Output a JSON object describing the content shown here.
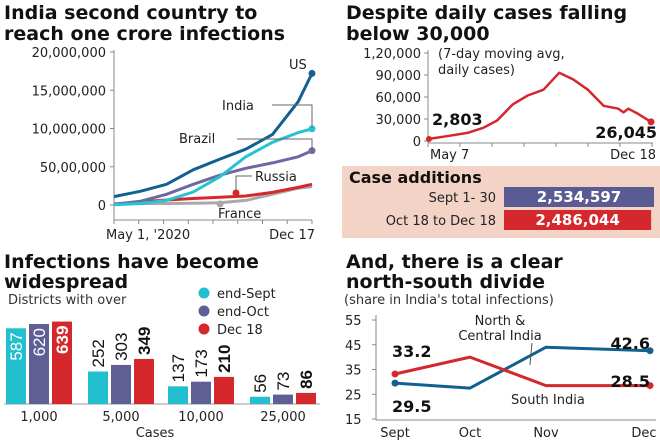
{
  "chart_data": [
    {
      "type": "line",
      "title": "India second country to reach one crore infections",
      "xtick_labels": [
        "May 1, '2020",
        "Dec 17"
      ],
      "ytick_labels": [
        "20,000,000",
        "15,000,000",
        "10,000,000",
        "50,00,000",
        "0"
      ],
      "yticks": [
        20000000,
        15000000,
        10000000,
        5000000,
        0
      ],
      "ylim": [
        0,
        20000000
      ],
      "x": [
        "2020-05-01",
        "2020-06-01",
        "2020-07-01",
        "2020-08-01",
        "2020-09-01",
        "2020-10-01",
        "2020-11-01",
        "2020-12-01",
        "2020-12-17"
      ],
      "series": [
        {
          "name": "US",
          "color": "#12608f",
          "values": [
            1100000,
            1800000,
            2700000,
            4600000,
            6000000,
            7300000,
            9200000,
            13500000,
            17200000
          ]
        },
        {
          "name": "India",
          "color": "#27c3d3",
          "values": [
            35000,
            190000,
            600000,
            1700000,
            3700000,
            6300000,
            8200000,
            9460000,
            9960000
          ]
        },
        {
          "name": "Brazil",
          "color": "#6b6aa0",
          "values": [
            90000,
            500000,
            1400000,
            2700000,
            3900000,
            4800000,
            5500000,
            6300000,
            7100000
          ]
        },
        {
          "name": "Russia",
          "color": "#d4282c",
          "values": [
            110000,
            410000,
            650000,
            850000,
            1000000,
            1180000,
            1650000,
            2300000,
            2700000
          ]
        },
        {
          "name": "France",
          "color": "#a9a9a9",
          "values": [
            170000,
            190000,
            200000,
            220000,
            290000,
            600000,
            1400000,
            2200000,
            2400000
          ]
        }
      ]
    },
    {
      "type": "line",
      "title": "Despite daily cases falling below 30,000",
      "subtitle": "(7-day moving avg, daily cases)",
      "subtitle_lines": [
        "(7-day moving avg,",
        "daily cases)"
      ],
      "ytick_labels": [
        "1,20,000",
        "90,000",
        "60,000",
        "30,000",
        "0"
      ],
      "yticks": [
        120000,
        90000,
        60000,
        30000,
        0
      ],
      "ylim": [
        0,
        120000
      ],
      "xtick_labels": [
        "May 7",
        "Dec 18"
      ],
      "x": [
        "2020-05-07",
        "2020-05-25",
        "2020-06-15",
        "2020-07-01",
        "2020-07-15",
        "2020-07-31",
        "2020-08-15",
        "2020-08-31",
        "2020-09-16",
        "2020-09-30",
        "2020-10-15",
        "2020-10-31",
        "2020-11-15",
        "2020-11-20",
        "2020-11-25",
        "2020-12-05",
        "2020-12-18"
      ],
      "values": [
        2803,
        6500,
        11000,
        18000,
        28000,
        50000,
        62000,
        70000,
        93000,
        84000,
        70000,
        48000,
        44000,
        39000,
        44000,
        37000,
        26045
      ],
      "color": "#d4282c",
      "annotations": {
        "start": "2,803",
        "end": "26,045"
      }
    },
    {
      "type": "bar",
      "title": "Case additions",
      "categories": [
        "Sept 1- 30",
        "Oct 18 to Dec 18"
      ],
      "values": [
        2534597,
        2486044
      ],
      "value_labels": [
        "2,534,597",
        "2,486,044"
      ],
      "colors": [
        "#5a5b92",
        "#d4282c"
      ],
      "background": "#f3d3c6"
    },
    {
      "type": "bar",
      "title": "Infections have become widespread",
      "subtitle": "Districts with over",
      "xlabel": "Cases",
      "categories": [
        "1,000",
        "5,000",
        "10,000",
        "25,000"
      ],
      "series": [
        {
          "name": "end-Sept",
          "color": "#22c0cf",
          "values": [
            587,
            252,
            137,
            56
          ]
        },
        {
          "name": "end-Oct",
          "color": "#5f5f95",
          "values": [
            620,
            303,
            173,
            73
          ]
        },
        {
          "name": "Dec 18",
          "color": "#d4282c",
          "values": [
            639,
            349,
            210,
            86
          ]
        }
      ],
      "legend": "top-right"
    },
    {
      "type": "line",
      "title": "And, there is a clear north-south divide",
      "subtitle": "(share in India's total infections)",
      "categories": [
        "Sept",
        "Oct",
        "Nov",
        "Dec"
      ],
      "ytick_labels": [
        "55",
        "45",
        "35",
        "25",
        "15"
      ],
      "yticks": [
        55,
        45,
        35,
        25,
        15
      ],
      "series": [
        {
          "name": "North & Central India",
          "color": "#12608f",
          "values": [
            29.5,
            27.5,
            44,
            42.6
          ]
        },
        {
          "name": "South India",
          "color": "#d4282c",
          "values": [
            33.2,
            40,
            28.5,
            28.5
          ]
        }
      ],
      "series_label_lines": [
        "North &",
        "Central India"
      ],
      "value_labels": {
        "north_start": "29.5",
        "north_end": "42.6",
        "south_start": "33.2",
        "south_end": "28.5"
      }
    }
  ]
}
